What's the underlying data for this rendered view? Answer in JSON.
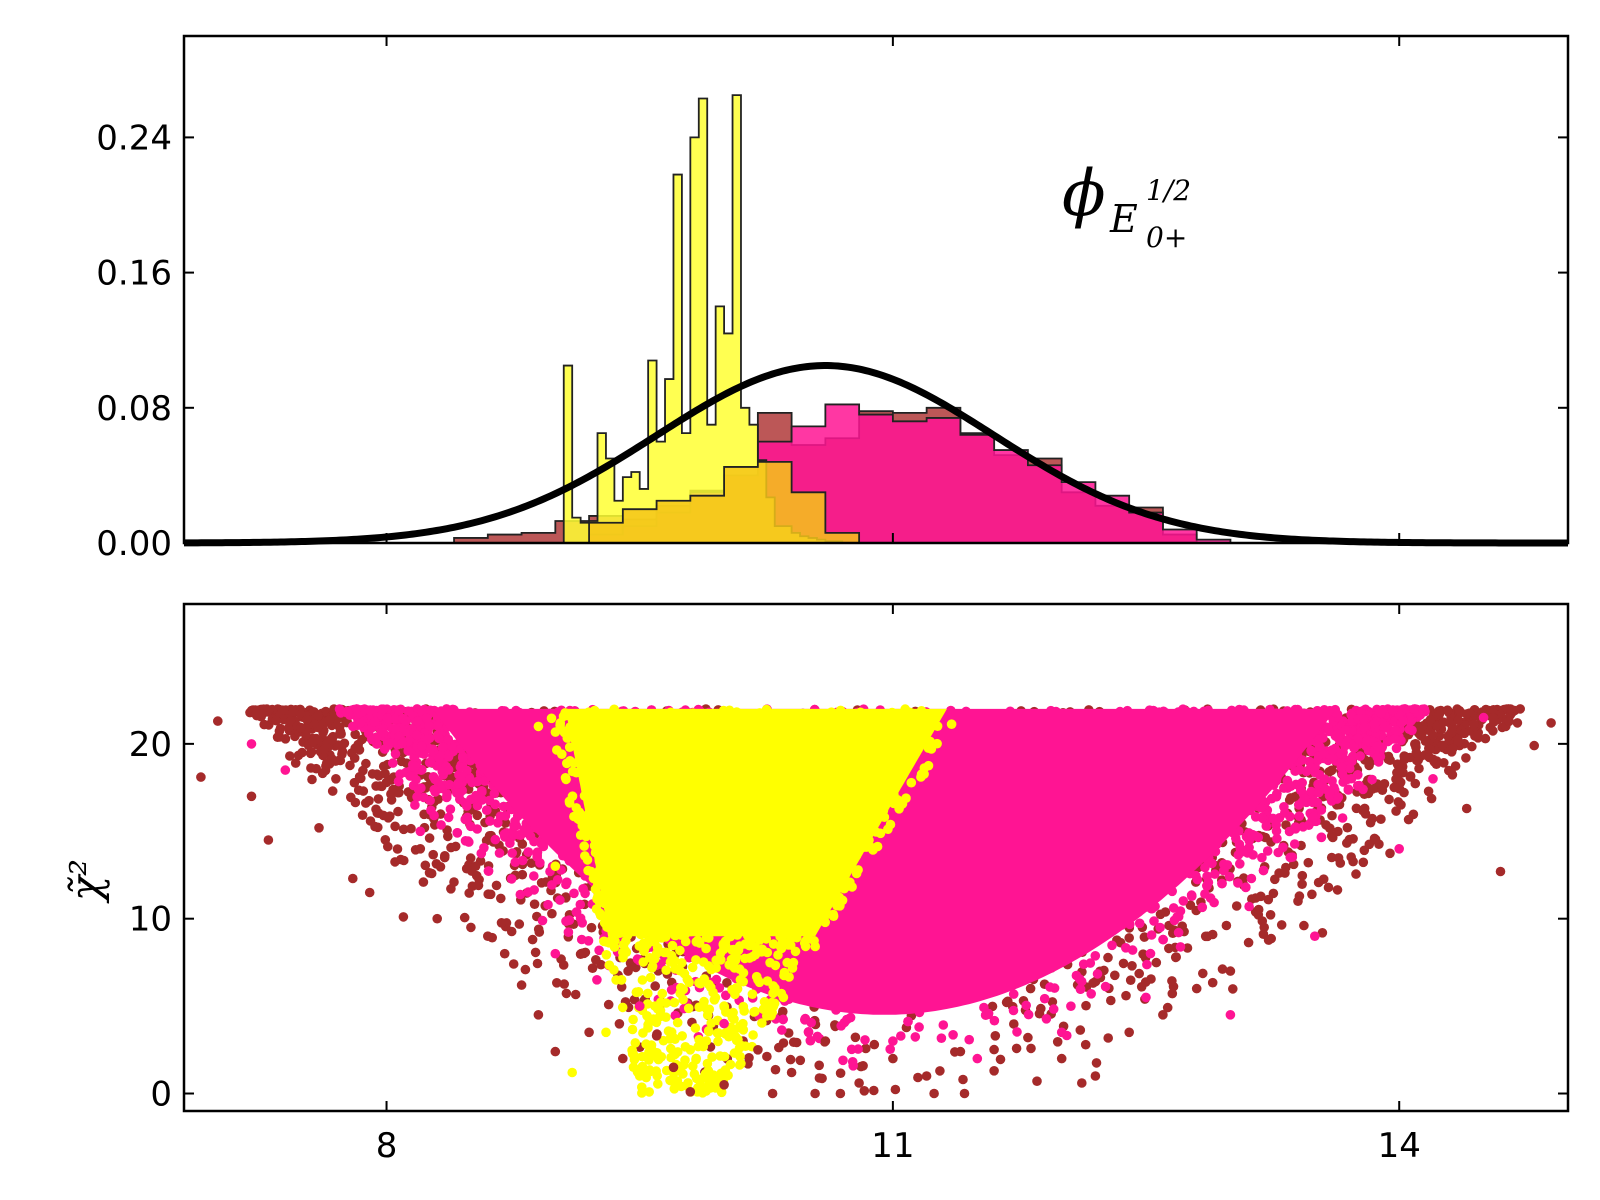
{
  "colors": {
    "brown": "#b03a3a",
    "brown_point": "#a52a2a",
    "pink": "#ff1493",
    "yellow": "#ffff00",
    "hist_yellow": "#ffff33",
    "hist_gold": "#f5c518",
    "curve": "#000000",
    "axis": "#000000"
  },
  "chart_data": [
    {
      "type": "histogram",
      "panel": "top",
      "annotation": {
        "symbol": "ϕ",
        "sub": "E",
        "sup": "1/2",
        "subsub": "0+"
      },
      "xlim": [
        6.8,
        15.0
      ],
      "ylim": [
        0.0,
        0.3
      ],
      "yticks": [
        0.0,
        0.08,
        0.16,
        0.24
      ],
      "ytick_labels": [
        "0.00",
        "0.08",
        "0.16",
        "0.24"
      ],
      "grid": false,
      "series": [
        {
          "color": "brown",
          "bin_edges": [
            8.4,
            8.6,
            8.8,
            9.0,
            9.2,
            9.4,
            9.6,
            9.8,
            10.0,
            10.2,
            10.4,
            10.6,
            10.8,
            11.0,
            11.2,
            11.4,
            11.6,
            11.8,
            12.0,
            12.2,
            12.4,
            12.6,
            12.8
          ],
          "values": [
            0.003,
            0.005,
            0.006,
            0.013,
            0.016,
            0.014,
            0.022,
            0.031,
            0.04,
            0.077,
            0.058,
            0.062,
            0.078,
            0.077,
            0.08,
            0.065,
            0.052,
            0.05,
            0.03,
            0.022,
            0.021,
            0.005
          ]
        },
        {
          "color": "pink",
          "bin_edges": [
            9.2,
            9.4,
            9.6,
            9.8,
            10.0,
            10.2,
            10.4,
            10.6,
            10.8,
            11.0,
            11.2,
            11.4,
            11.6,
            11.8,
            12.0,
            12.2,
            12.4,
            12.6,
            12.8,
            13.0
          ],
          "values": [
            0.005,
            0.01,
            0.018,
            0.03,
            0.04,
            0.06,
            0.069,
            0.082,
            0.076,
            0.072,
            0.074,
            0.064,
            0.055,
            0.046,
            0.036,
            0.028,
            0.018,
            0.008,
            0.002
          ]
        },
        {
          "color": "hist_yellow",
          "bin_edges": [
            9.05,
            9.1,
            9.15,
            9.2,
            9.25,
            9.3,
            9.35,
            9.4,
            9.45,
            9.5,
            9.55,
            9.6,
            9.65,
            9.7,
            9.75,
            9.8,
            9.85,
            9.9,
            9.95,
            10.0,
            10.05,
            10.1,
            10.15,
            10.2,
            10.25,
            10.3,
            10.35,
            10.4,
            10.45,
            10.5,
            10.55,
            10.6,
            10.65,
            10.7,
            10.75
          ],
          "values": [
            0.105,
            0.015,
            0.012,
            0.013,
            0.065,
            0.05,
            0.025,
            0.039,
            0.042,
            0.032,
            0.108,
            0.06,
            0.097,
            0.218,
            0.065,
            0.24,
            0.263,
            0.07,
            0.14,
            0.124,
            0.265,
            0.08,
            0.07,
            0.049,
            0.027,
            0.01,
            0.01,
            0.006,
            0.004,
            0.003,
            0.002,
            0.001,
            0.001,
            0.0
          ]
        },
        {
          "color": "hist_gold",
          "bin_edges": [
            9.2,
            9.4,
            9.6,
            9.8,
            10.0,
            10.2,
            10.4,
            10.6,
            10.8
          ],
          "values": [
            0.012,
            0.02,
            0.025,
            0.028,
            0.045,
            0.048,
            0.03,
            0.006
          ]
        }
      ],
      "curve": {
        "kind": "gaussian",
        "mean": 10.6,
        "sigma": 1.0,
        "peak": 0.105
      }
    },
    {
      "type": "scatter",
      "panel": "bottom",
      "ylabel": "χ̃²",
      "xlim": [
        6.8,
        15.0
      ],
      "ylim": [
        -1.0,
        28.0
      ],
      "xticks": [
        8,
        11,
        14
      ],
      "xtick_labels": [
        "8",
        "11",
        "14"
      ],
      "yticks": [
        0,
        10,
        20
      ],
      "ytick_labels": [
        "0",
        "10",
        "20"
      ],
      "grid": false,
      "series": [
        {
          "color": "brown_point",
          "description_points": [
            [
              6.9,
              18.1
            ],
            [
              7.0,
              21.3
            ],
            [
              7.2,
              17.0
            ],
            [
              7.3,
              14.5
            ],
            [
              7.5,
              19.5
            ],
            [
              7.6,
              15.2
            ],
            [
              7.7,
              18.0
            ],
            [
              7.8,
              12.3
            ],
            [
              7.9,
              11.5
            ],
            [
              8.0,
              17.8
            ],
            [
              8.1,
              10.1
            ],
            [
              8.2,
              14.0
            ],
            [
              8.3,
              10.0
            ],
            [
              8.4,
              12.1
            ],
            [
              8.5,
              9.5
            ],
            [
              8.6,
              9.0
            ],
            [
              8.7,
              8.0
            ],
            [
              8.8,
              6.2
            ],
            [
              8.9,
              4.5
            ],
            [
              9.0,
              2.4
            ],
            [
              9.2,
              3.5
            ],
            [
              9.4,
              2.0
            ],
            [
              9.5,
              5.0
            ],
            [
              9.6,
              3.3
            ],
            [
              9.7,
              1.5
            ],
            [
              9.8,
              0.1
            ],
            [
              10.0,
              0.5
            ],
            [
              10.2,
              2.5
            ],
            [
              10.4,
              1.2
            ],
            [
              10.6,
              3.0
            ],
            [
              10.8,
              0.6
            ],
            [
              11.0,
              2.0
            ],
            [
              11.2,
              1.0
            ],
            [
              11.4,
              2.4
            ],
            [
              11.6,
              1.3
            ],
            [
              11.8,
              3.2
            ],
            [
              12.0,
              2.0
            ],
            [
              12.2,
              1.0
            ],
            [
              12.4,
              3.5
            ],
            [
              12.6,
              4.5
            ],
            [
              12.8,
              6.0
            ],
            [
              13.0,
              7.0
            ],
            [
              13.2,
              9.5
            ],
            [
              13.4,
              11.0
            ],
            [
              13.6,
              13.5
            ],
            [
              13.8,
              16.0
            ],
            [
              14.0,
              18.5
            ],
            [
              14.2,
              20.5
            ],
            [
              14.4,
              16.3
            ],
            [
              14.6,
              12.7
            ],
            [
              14.7,
              21.2
            ],
            [
              14.8,
              19.9
            ],
            [
              14.9,
              21.2
            ]
          ]
        },
        {
          "color": "pink",
          "description_points": [
            [
              7.2,
              20.0
            ],
            [
              7.4,
              18.5
            ],
            [
              7.8,
              21.0
            ],
            [
              8.2,
              15.0
            ],
            [
              9.0,
              8.0
            ],
            [
              9.5,
              5.0
            ],
            [
              10.0,
              4.0
            ],
            [
              10.5,
              3.5
            ],
            [
              11.0,
              3.0
            ],
            [
              11.5,
              2.0
            ],
            [
              12.0,
              3.5
            ],
            [
              12.5,
              5.5
            ],
            [
              13.0,
              4.5
            ],
            [
              13.5,
              9.0
            ],
            [
              14.0,
              14.0
            ],
            [
              14.2,
              18.0
            ],
            [
              14.5,
              21.5
            ]
          ]
        },
        {
          "color": "yellow",
          "description_points": [
            [
              8.9,
              21.0
            ],
            [
              9.0,
              13.0
            ],
            [
              9.1,
              1.2
            ],
            [
              9.3,
              3.5
            ],
            [
              9.5,
              1.0
            ],
            [
              9.6,
              8.0
            ],
            [
              9.8,
              2.5
            ],
            [
              10.0,
              5.0
            ],
            [
              10.2,
              6.5
            ],
            [
              10.4,
              9.0
            ],
            [
              10.5,
              12.0
            ],
            [
              10.6,
              18.0
            ],
            [
              10.7,
              20.0
            ]
          ]
        }
      ]
    }
  ]
}
